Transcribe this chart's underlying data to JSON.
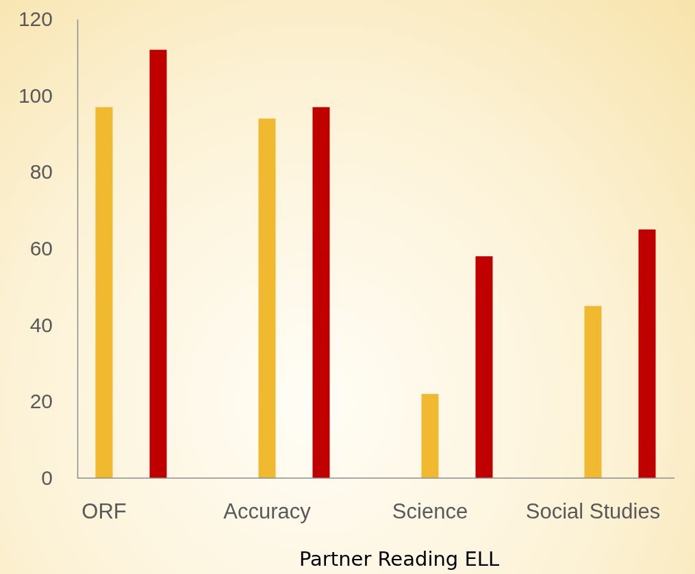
{
  "chart_data": {
    "type": "bar",
    "xlabel": "Partner Reading ELL",
    "categories": [
      "ORF",
      "Accuracy",
      "Science",
      "Social Studies"
    ],
    "series": [
      {
        "color": "#f0b92f",
        "values": [
          97,
          94,
          22,
          45
        ]
      },
      {
        "color": "#c00000",
        "values": [
          112,
          97,
          58,
          65
        ]
      }
    ],
    "ylim": [
      0,
      120
    ],
    "yticks": [
      0,
      20,
      40,
      60,
      80,
      100,
      120
    ],
    "grid": false
  }
}
